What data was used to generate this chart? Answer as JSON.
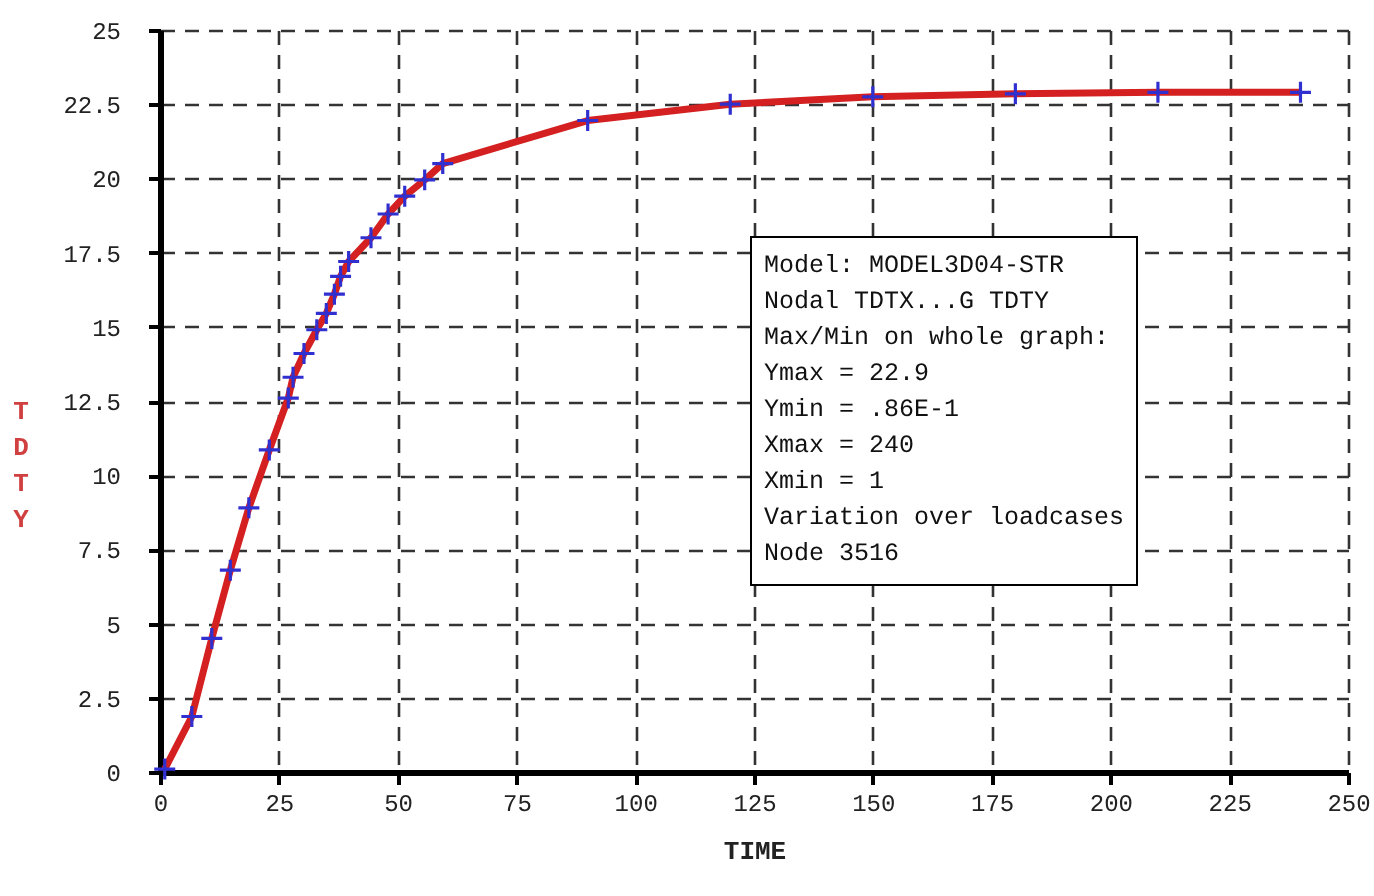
{
  "chart_data": {
    "type": "line",
    "xlabel": "TIME",
    "ylabel": "TDTY",
    "x": [
      1,
      6.7,
      10.9,
      14.8,
      18.7,
      23,
      27,
      28,
      30.3,
      33,
      35,
      36.7,
      38,
      39.7,
      44.4,
      48,
      51.5,
      55.7,
      59.5,
      90,
      120,
      150,
      180,
      210,
      240
    ],
    "series": [
      {
        "color": "#d42020",
        "values": [
          0.1,
          1.87,
          4.5,
          6.8,
          8.9,
          10.85,
          12.6,
          13.3,
          14.1,
          14.9,
          15.45,
          16.1,
          16.7,
          17.2,
          18.0,
          18.8,
          19.4,
          19.95,
          20.5,
          21.95,
          22.5,
          22.75,
          22.85,
          22.9,
          22.9
        ]
      },
      {
        "type": "scatter",
        "marker": "cross",
        "color": "#3030d0",
        "values": [
          0.1,
          1.87,
          4.5,
          6.8,
          8.9,
          10.85,
          12.6,
          13.3,
          14.1,
          14.9,
          15.45,
          16.1,
          16.7,
          17.2,
          18.0,
          18.8,
          19.4,
          19.95,
          20.5,
          21.95,
          22.5,
          22.75,
          22.85,
          22.9,
          22.9
        ]
      }
    ],
    "xlim": [
      0,
      250
    ],
    "xticks": [
      0,
      25,
      50,
      75,
      100,
      125,
      150,
      175,
      200,
      225,
      250
    ],
    "ylim": [
      0,
      25
    ],
    "yticks": [
      0,
      2.5,
      5,
      7.5,
      10,
      12.5,
      15,
      17.5,
      20,
      22.5,
      25
    ],
    "grid": true,
    "line_style": "solid",
    "annotations": [
      "Model: MODEL3D04-STR",
      "Nodal TDTX...G TDTY",
      "Max/Min on whole graph:",
      "Ymax = 22.9",
      "Ymin = .86E-1",
      "Xmax = 240",
      "Xmin = 1",
      "Variation over loadcases",
      "Node 3516"
    ]
  }
}
